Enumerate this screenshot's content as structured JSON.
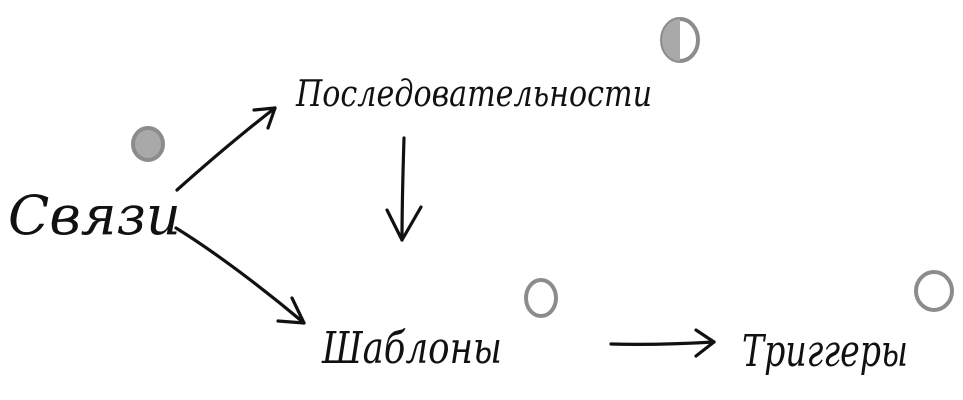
{
  "nodes": {
    "svyazi": {
      "label": "Связи",
      "status": "filled"
    },
    "posledovatelnosti": {
      "label": "Последовательности",
      "status": "half"
    },
    "shablony": {
      "label": "Шаблоны",
      "status": "empty"
    },
    "triggery": {
      "label": "Триггеры",
      "status": "empty"
    }
  },
  "edges": [
    {
      "from": "svyazi",
      "to": "posledovatelnosti"
    },
    {
      "from": "svyazi",
      "to": "shablony"
    },
    {
      "from": "posledovatelnosti",
      "to": "shablony"
    },
    {
      "from": "shablony",
      "to": "triggery"
    }
  ],
  "colors": {
    "ink": "#111111",
    "marker_stroke": "#8c8c8c",
    "marker_fill": "#a9a9a9",
    "background": "#ffffff"
  }
}
